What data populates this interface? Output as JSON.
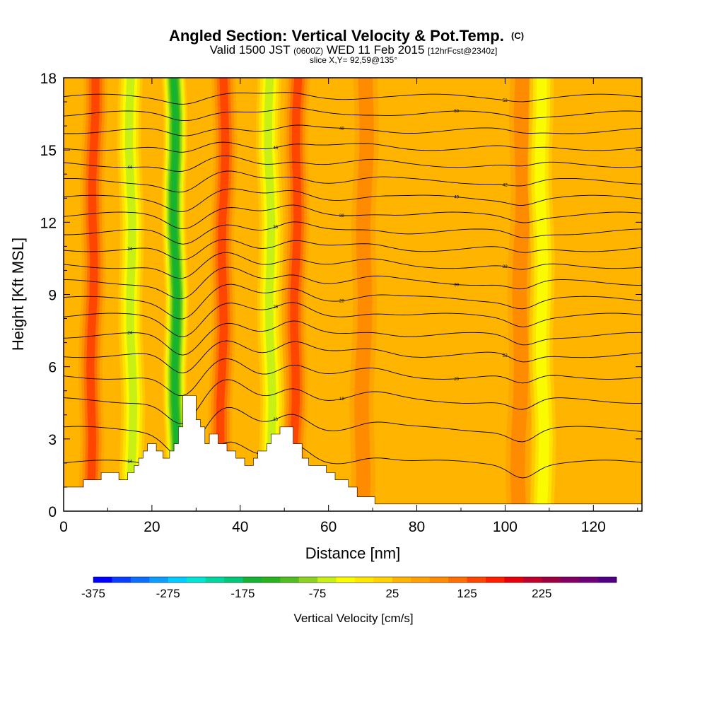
{
  "chart_data": {
    "type": "heatmap",
    "title": {
      "main": "Angled Section: Vertical Velocity & Pot.Temp.",
      "main_suffix": "(C)",
      "sub_a": "Valid 1500 JST",
      "sub_b": "(0600Z)",
      "sub_c": "WED 11 Feb 2015",
      "sub_d": "[12hrFcst@2340z]",
      "slice": "slice X,Y= 92,59@135°"
    },
    "xlabel": "Distance [nm]",
    "ylabel": "Height [Kft MSL]",
    "xlim": [
      0,
      131
    ],
    "ylim": [
      0,
      18
    ],
    "x_ticks": [
      0,
      20,
      40,
      60,
      80,
      100,
      120
    ],
    "y_ticks": [
      0,
      3,
      6,
      9,
      12,
      15,
      18
    ],
    "background_level": 25,
    "updraft_bands": [
      {
        "x": 7,
        "peak": 125
      },
      {
        "x": 36.5,
        "peak": 125
      },
      {
        "x": 53,
        "peak": 125
      },
      {
        "x": 68.5,
        "peak": 75
      },
      {
        "x": 104,
        "peak": 75
      }
    ],
    "downdraft_bands": [
      {
        "x": 25,
        "peak": -175
      },
      {
        "x": 15,
        "peak": -75
      },
      {
        "x": 46.5,
        "peak": -75
      },
      {
        "x": 108,
        "peak": -50
      }
    ],
    "terrain_profile": [
      [
        0,
        1.0
      ],
      [
        4.5,
        1.0
      ],
      [
        4.5,
        1.3
      ],
      [
        8.5,
        1.3
      ],
      [
        8.5,
        1.6
      ],
      [
        12.5,
        1.6
      ],
      [
        12.5,
        1.3
      ],
      [
        14.5,
        1.3
      ],
      [
        14.5,
        1.6
      ],
      [
        16,
        1.6
      ],
      [
        16,
        1.9
      ],
      [
        17,
        1.9
      ],
      [
        17,
        2.2
      ],
      [
        18,
        2.2
      ],
      [
        18,
        2.5
      ],
      [
        19,
        2.5
      ],
      [
        19,
        2.8
      ],
      [
        21,
        2.8
      ],
      [
        21,
        2.5
      ],
      [
        22.5,
        2.5
      ],
      [
        22.5,
        2.2
      ],
      [
        24,
        2.2
      ],
      [
        24,
        2.5
      ],
      [
        25,
        2.5
      ],
      [
        25,
        2.8
      ],
      [
        26,
        2.8
      ],
      [
        26,
        3.5
      ],
      [
        27,
        3.5
      ],
      [
        27,
        4.8
      ],
      [
        30,
        4.8
      ],
      [
        30,
        3.8
      ],
      [
        31,
        3.8
      ],
      [
        31,
        3.5
      ],
      [
        32,
        3.5
      ],
      [
        32,
        2.8
      ],
      [
        33,
        2.8
      ],
      [
        33,
        3.2
      ],
      [
        35,
        3.2
      ],
      [
        35,
        2.8
      ],
      [
        37,
        2.8
      ],
      [
        37,
        2.5
      ],
      [
        39,
        2.5
      ],
      [
        39,
        2.2
      ],
      [
        41,
        2.2
      ],
      [
        41,
        1.9
      ],
      [
        43,
        1.9
      ],
      [
        43,
        2.2
      ],
      [
        44,
        2.2
      ],
      [
        44,
        2.5
      ],
      [
        46,
        2.5
      ],
      [
        46,
        2.8
      ],
      [
        47,
        2.8
      ],
      [
        47,
        3.2
      ],
      [
        49,
        3.2
      ],
      [
        49,
        3.5
      ],
      [
        52,
        3.5
      ],
      [
        52,
        2.8
      ],
      [
        54,
        2.8
      ],
      [
        54,
        2.2
      ],
      [
        55.5,
        2.2
      ],
      [
        55.5,
        1.9
      ],
      [
        59.5,
        1.9
      ],
      [
        59.5,
        1.6
      ],
      [
        61.5,
        1.6
      ],
      [
        61.5,
        1.3
      ],
      [
        64.5,
        1.3
      ],
      [
        64.5,
        1.0
      ],
      [
        66.5,
        1.0
      ],
      [
        66.5,
        0.6
      ],
      [
        70.5,
        0.6
      ],
      [
        70.5,
        0.3
      ],
      [
        131,
        0.3
      ]
    ],
    "isentropes": [
      {
        "level": "14",
        "base": 2.0
      },
      {
        "level": "16",
        "base": 3.4
      },
      {
        "level": "18",
        "base": 4.6
      },
      {
        "level": "20",
        "base": 5.6
      },
      {
        "level": "22",
        "base": 6.5
      },
      {
        "level": "24",
        "base": 7.3
      },
      {
        "level": "26",
        "base": 8.1
      },
      {
        "level": "28",
        "base": 8.8
      },
      {
        "level": "30",
        "base": 9.5
      },
      {
        "level": "32",
        "base": 10.2
      },
      {
        "level": "34",
        "base": 10.9
      },
      {
        "level": "36",
        "base": 11.6
      },
      {
        "level": "38",
        "base": 12.3
      },
      {
        "level": "40",
        "base": 13.0
      },
      {
        "level": "42",
        "base": 13.7
      },
      {
        "level": "44",
        "base": 14.4
      },
      {
        "level": "46",
        "base": 15.1
      },
      {
        "level": "48",
        "base": 15.8
      },
      {
        "level": "50",
        "base": 16.5
      },
      {
        "level": "52",
        "base": 17.2
      }
    ],
    "colorbar": {
      "label": "Vertical Velocity [cm/s]",
      "min": -375,
      "step": 25,
      "tick_labels": [
        "-375",
        "-275",
        "-175",
        "-75",
        "25",
        "125",
        "225"
      ],
      "colors": [
        "#0000ff",
        "#0a3dff",
        "#0a6eff",
        "#0a9fff",
        "#00ccff",
        "#00e5d6",
        "#00d7a0",
        "#00c878",
        "#14b432",
        "#28b41e",
        "#50be1e",
        "#8cd21e",
        "#c8f014",
        "#fafa00",
        "#ffe600",
        "#ffd200",
        "#ffb400",
        "#ffa000",
        "#ff8c00",
        "#ff6e00",
        "#ff4600",
        "#ff1e00",
        "#e6000a",
        "#be002d",
        "#9b0041",
        "#820064",
        "#6e0078",
        "#500087"
      ]
    }
  }
}
